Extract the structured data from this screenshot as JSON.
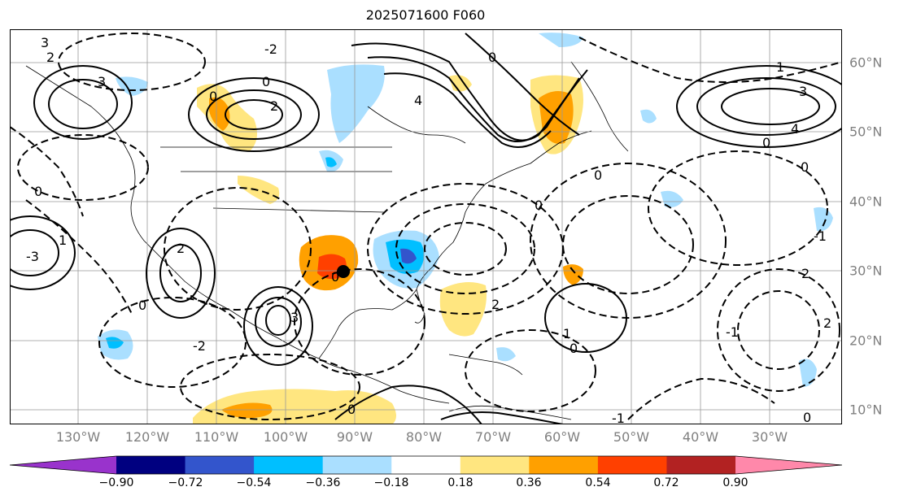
{
  "title": "2025071600 F060",
  "lon_labels": [
    "130°W",
    "120°W",
    "110°W",
    "100°W",
    "90°W",
    "80°W",
    "70°W",
    "60°W",
    "50°W",
    "40°W",
    "30°W"
  ],
  "lat_labels": [
    "60°N",
    "50°N",
    "40°N",
    "30°N",
    "20°N",
    "10°N"
  ],
  "colorbar": {
    "ticks": [
      "−0.90",
      "−0.72",
      "−0.54",
      "−0.36",
      "−0.18",
      "0.18",
      "0.36",
      "0.54",
      "0.72",
      "0.90"
    ],
    "colors": [
      "#9933cc",
      "#000080",
      "#3355cc",
      "#00bfff",
      "#aadfff",
      "#ffffff",
      "#ffe680",
      "#ffa000",
      "#ff4000",
      "#b22222",
      "#ff88aa"
    ]
  },
  "contour_labels": [
    "3",
    "2",
    "1",
    "0",
    "-1",
    "-2",
    "-3",
    "4"
  ],
  "marker": "storm-center"
}
